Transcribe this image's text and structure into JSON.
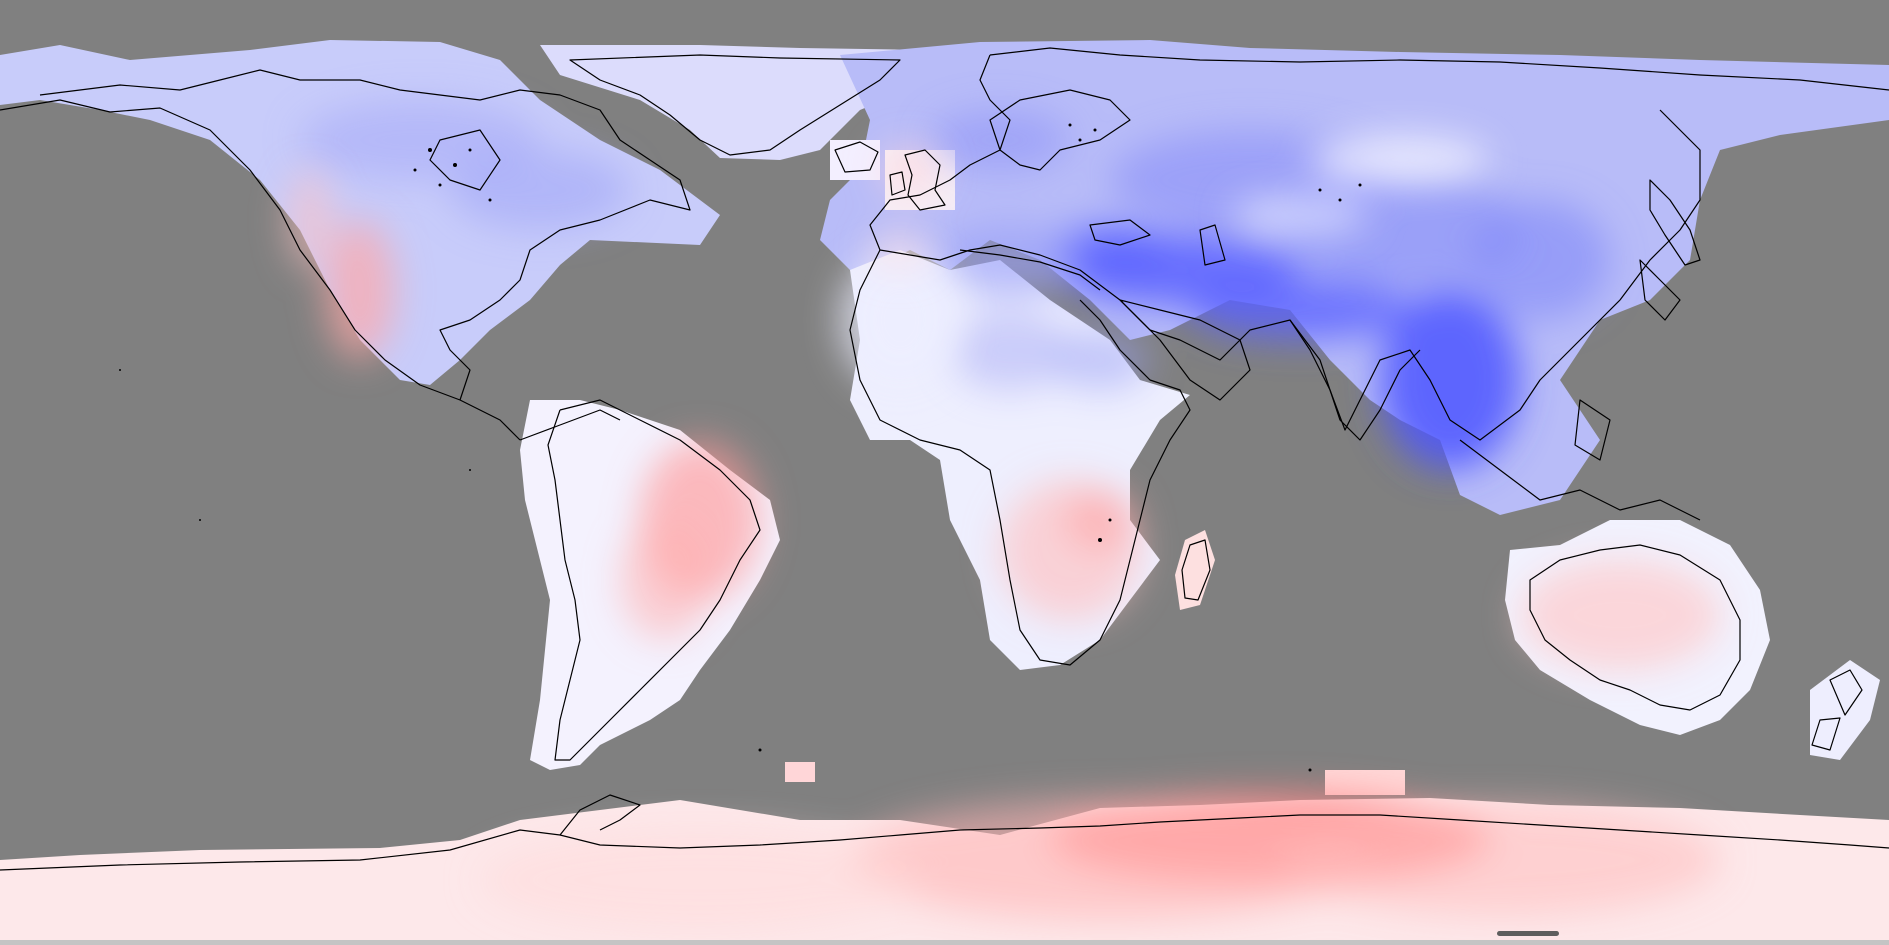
{
  "map": {
    "projection": "equirectangular",
    "ocean_mask_color": "#808080",
    "coastline_color": "#000000",
    "colorscale": {
      "type": "diverging",
      "negative_color": "#4a50ff",
      "neutral_color": "#ffffff",
      "positive_color": "#ff5a5a"
    }
  },
  "ui": {
    "scrollbar": {
      "track_color": "#c4c4c4",
      "thumb_color": "#5e5e5e"
    }
  }
}
